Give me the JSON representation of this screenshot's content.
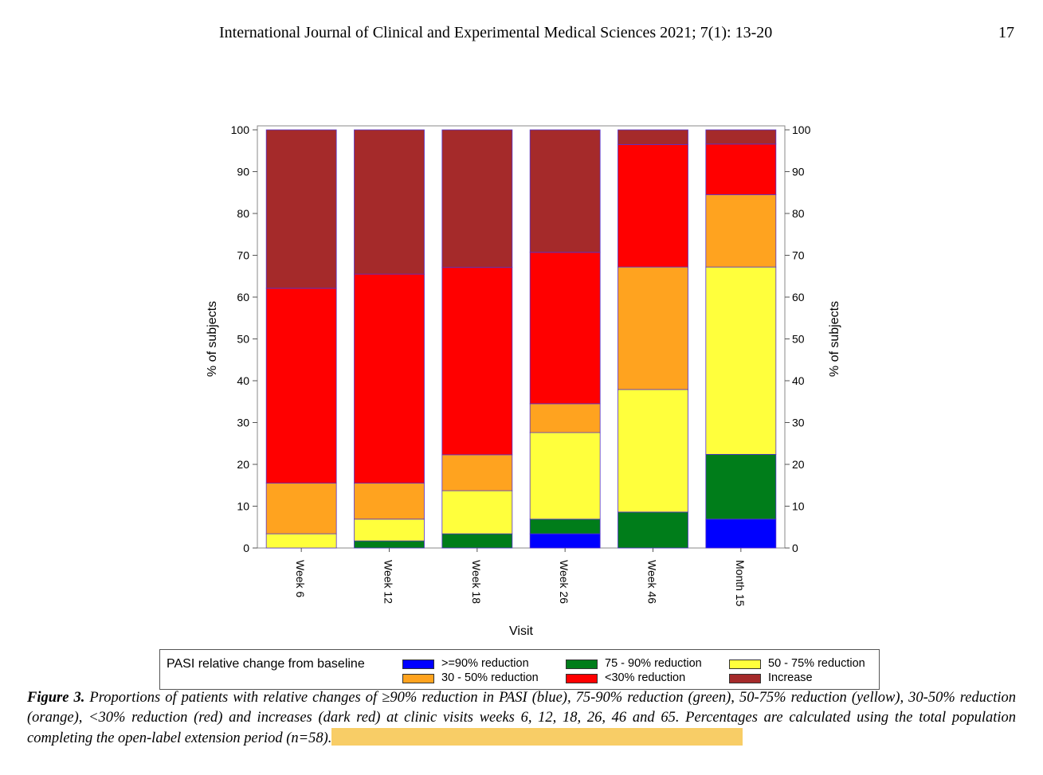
{
  "header": {
    "journal": "International Journal of Clinical and Experimental Medical Sciences 2021; 7(1): 13-20",
    "page": "17"
  },
  "chart_data": {
    "type": "bar",
    "stacked": true,
    "categories": [
      "Week 6",
      "Week 12",
      "Week 18",
      "Week 26",
      "Week 46",
      "Month 15"
    ],
    "series": [
      {
        "name": ">=90% reduction",
        "color": "#0000ff",
        "values": [
          0,
          0,
          0,
          3.4,
          0,
          6.9
        ]
      },
      {
        "name": "75 - 90% reduction",
        "color": "#007d1a",
        "values": [
          0,
          1.7,
          3.4,
          3.5,
          8.6,
          15.5
        ]
      },
      {
        "name": "50 - 75% reduction",
        "color": "#ffff3c",
        "values": [
          3.4,
          5.2,
          10.3,
          20.7,
          29.3,
          44.8
        ]
      },
      {
        "name": "30 - 50% reduction",
        "color": "#ffa31f",
        "values": [
          12.1,
          8.6,
          8.6,
          6.9,
          29.3,
          17.3
        ]
      },
      {
        "name": "<30% reduction",
        "color": "#ff0000",
        "values": [
          46.6,
          50.0,
          44.8,
          36.2,
          29.3,
          12.1
        ]
      },
      {
        "name": "Increase",
        "color": "#a52a2a",
        "values": [
          37.9,
          34.5,
          32.9,
          29.3,
          3.5,
          3.4
        ]
      }
    ],
    "xlabel": "Visit",
    "ylabel": "% of subjects",
    "ylabel_right": "% of subjects",
    "ylim": [
      0,
      100
    ],
    "yticks": [
      0,
      10,
      20,
      30,
      40,
      50,
      60,
      70,
      80,
      90,
      100
    ],
    "bar_outline_color": "#5533cc",
    "legend_title": "PASI relative change from baseline",
    "legend_position": "bottom",
    "grid": false
  },
  "caption": {
    "label": "Figure 3.",
    "text": " Proportions of patients with relative changes of ≥90% reduction in PASI (blue), 75-90% reduction (green), 50-75% reduction (yellow), 30-50% reduction (orange), <30% reduction (red) and increases (dark red) at clinic visits weeks 6, 12, 18, 26, 46 and 65. Percentages are calculated using the total population completing the open-label extension period (n=58)."
  }
}
